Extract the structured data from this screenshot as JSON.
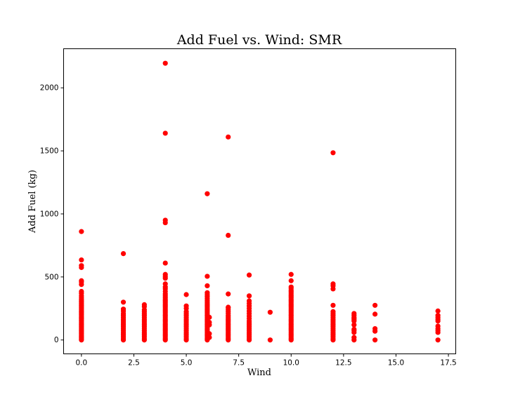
{
  "chart_data": {
    "type": "scatter",
    "title": "Add Fuel vs. Wind: SMR",
    "xlabel": "Wind",
    "ylabel": "Add Fuel (kg)",
    "xlim": [
      -0.85,
      17.85
    ],
    "ylim": [
      -110,
      2310
    ],
    "xticks": [
      0.0,
      2.5,
      5.0,
      7.5,
      10.0,
      12.5,
      15.0,
      17.5
    ],
    "xtick_labels": [
      "0.0",
      "2.5",
      "5.0",
      "7.5",
      "10.0",
      "12.5",
      "15.0",
      "17.5"
    ],
    "yticks": [
      0,
      500,
      1000,
      1500,
      2000
    ],
    "ytick_labels": [
      "0",
      "500",
      "1000",
      "1500",
      "2000"
    ],
    "grid": false,
    "legend": "none",
    "marker_color": "#ff0000",
    "series": [
      {
        "points": [
          [
            0,
            0
          ],
          [
            0,
            10
          ],
          [
            0,
            20
          ],
          [
            0,
            30
          ],
          [
            0,
            40
          ],
          [
            0,
            50
          ],
          [
            0,
            60
          ],
          [
            0,
            70
          ],
          [
            0,
            80
          ],
          [
            0,
            90
          ],
          [
            0,
            100
          ],
          [
            0,
            110
          ],
          [
            0,
            120
          ],
          [
            0,
            130
          ],
          [
            0,
            140
          ],
          [
            0,
            150
          ],
          [
            0,
            160
          ],
          [
            0,
            170
          ],
          [
            0,
            180
          ],
          [
            0,
            190
          ],
          [
            0,
            200
          ],
          [
            0,
            210
          ],
          [
            0,
            220
          ],
          [
            0,
            230
          ],
          [
            0,
            240
          ],
          [
            0,
            250
          ],
          [
            0,
            260
          ],
          [
            0,
            270
          ],
          [
            0,
            280
          ],
          [
            0,
            290
          ],
          [
            0,
            300
          ],
          [
            0,
            310
          ],
          [
            0,
            320
          ],
          [
            0,
            335
          ],
          [
            0,
            350
          ],
          [
            0,
            370
          ],
          [
            0,
            385
          ],
          [
            0,
            440
          ],
          [
            0,
            460
          ],
          [
            0,
            470
          ],
          [
            0,
            575
          ],
          [
            0,
            590
          ],
          [
            0,
            635
          ],
          [
            0,
            860
          ],
          [
            2,
            0
          ],
          [
            2,
            15
          ],
          [
            2,
            30
          ],
          [
            2,
            45
          ],
          [
            2,
            60
          ],
          [
            2,
            75
          ],
          [
            2,
            90
          ],
          [
            2,
            105
          ],
          [
            2,
            120
          ],
          [
            2,
            135
          ],
          [
            2,
            150
          ],
          [
            2,
            165
          ],
          [
            2,
            180
          ],
          [
            2,
            195
          ],
          [
            2,
            210
          ],
          [
            2,
            230
          ],
          [
            2,
            245
          ],
          [
            2,
            300
          ],
          [
            2,
            685
          ],
          [
            3,
            0
          ],
          [
            3,
            15
          ],
          [
            3,
            30
          ],
          [
            3,
            45
          ],
          [
            3,
            60
          ],
          [
            3,
            75
          ],
          [
            3,
            90
          ],
          [
            3,
            105
          ],
          [
            3,
            120
          ],
          [
            3,
            135
          ],
          [
            3,
            150
          ],
          [
            3,
            165
          ],
          [
            3,
            180
          ],
          [
            3,
            195
          ],
          [
            3,
            210
          ],
          [
            3,
            225
          ],
          [
            3,
            240
          ],
          [
            3,
            265
          ],
          [
            3,
            280
          ],
          [
            4,
            0
          ],
          [
            4,
            12
          ],
          [
            4,
            24
          ],
          [
            4,
            36
          ],
          [
            4,
            48
          ],
          [
            4,
            60
          ],
          [
            4,
            72
          ],
          [
            4,
            84
          ],
          [
            4,
            96
          ],
          [
            4,
            108
          ],
          [
            4,
            120
          ],
          [
            4,
            132
          ],
          [
            4,
            144
          ],
          [
            4,
            156
          ],
          [
            4,
            168
          ],
          [
            4,
            180
          ],
          [
            4,
            192
          ],
          [
            4,
            204
          ],
          [
            4,
            216
          ],
          [
            4,
            228
          ],
          [
            4,
            240
          ],
          [
            4,
            252
          ],
          [
            4,
            264
          ],
          [
            4,
            276
          ],
          [
            4,
            288
          ],
          [
            4,
            300
          ],
          [
            4,
            312
          ],
          [
            4,
            324
          ],
          [
            4,
            336
          ],
          [
            4,
            350
          ],
          [
            4,
            365
          ],
          [
            4,
            385
          ],
          [
            4,
            405
          ],
          [
            4,
            420
          ],
          [
            4,
            445
          ],
          [
            4,
            490
          ],
          [
            4,
            505
          ],
          [
            4,
            520
          ],
          [
            4,
            610
          ],
          [
            4,
            930
          ],
          [
            4,
            950
          ],
          [
            4,
            1640
          ],
          [
            4,
            2195
          ],
          [
            5,
            0
          ],
          [
            5,
            15
          ],
          [
            5,
            30
          ],
          [
            5,
            45
          ],
          [
            5,
            60
          ],
          [
            5,
            75
          ],
          [
            5,
            90
          ],
          [
            5,
            105
          ],
          [
            5,
            120
          ],
          [
            5,
            135
          ],
          [
            5,
            150
          ],
          [
            5,
            165
          ],
          [
            5,
            180
          ],
          [
            5,
            195
          ],
          [
            5,
            210
          ],
          [
            5,
            225
          ],
          [
            5,
            250
          ],
          [
            5,
            270
          ],
          [
            5,
            360
          ],
          [
            6,
            0
          ],
          [
            6,
            12
          ],
          [
            6,
            24
          ],
          [
            6,
            36
          ],
          [
            6,
            48
          ],
          [
            6,
            60
          ],
          [
            6,
            72
          ],
          [
            6,
            84
          ],
          [
            6,
            96
          ],
          [
            6,
            108
          ],
          [
            6,
            120
          ],
          [
            6,
            132
          ],
          [
            6,
            144
          ],
          [
            6,
            156
          ],
          [
            6,
            168
          ],
          [
            6,
            180
          ],
          [
            6,
            192
          ],
          [
            6,
            204
          ],
          [
            6,
            216
          ],
          [
            6,
            228
          ],
          [
            6,
            240
          ],
          [
            6,
            252
          ],
          [
            6,
            264
          ],
          [
            6,
            276
          ],
          [
            6,
            288
          ],
          [
            6,
            300
          ],
          [
            6,
            315
          ],
          [
            6,
            330
          ],
          [
            6,
            345
          ],
          [
            6,
            360
          ],
          [
            6,
            375
          ],
          [
            6,
            430
          ],
          [
            6,
            505
          ],
          [
            6,
            1160
          ],
          [
            6.1,
            20
          ],
          [
            6.1,
            50
          ],
          [
            6.1,
            120
          ],
          [
            6.1,
            140
          ],
          [
            6.1,
            180
          ],
          [
            7,
            0
          ],
          [
            7,
            12
          ],
          [
            7,
            24
          ],
          [
            7,
            36
          ],
          [
            7,
            48
          ],
          [
            7,
            60
          ],
          [
            7,
            72
          ],
          [
            7,
            84
          ],
          [
            7,
            96
          ],
          [
            7,
            108
          ],
          [
            7,
            120
          ],
          [
            7,
            132
          ],
          [
            7,
            144
          ],
          [
            7,
            156
          ],
          [
            7,
            168
          ],
          [
            7,
            180
          ],
          [
            7,
            192
          ],
          [
            7,
            210
          ],
          [
            7,
            225
          ],
          [
            7,
            240
          ],
          [
            7,
            255
          ],
          [
            7,
            260
          ],
          [
            7,
            365
          ],
          [
            7,
            830
          ],
          [
            7,
            1610
          ],
          [
            8,
            0
          ],
          [
            8,
            15
          ],
          [
            8,
            30
          ],
          [
            8,
            45
          ],
          [
            8,
            60
          ],
          [
            8,
            75
          ],
          [
            8,
            90
          ],
          [
            8,
            105
          ],
          [
            8,
            120
          ],
          [
            8,
            135
          ],
          [
            8,
            150
          ],
          [
            8,
            170
          ],
          [
            8,
            190
          ],
          [
            8,
            210
          ],
          [
            8,
            230
          ],
          [
            8,
            250
          ],
          [
            8,
            270
          ],
          [
            8,
            290
          ],
          [
            8,
            310
          ],
          [
            8,
            350
          ],
          [
            8,
            515
          ],
          [
            9,
            0
          ],
          [
            9,
            220
          ],
          [
            10,
            0
          ],
          [
            10,
            12
          ],
          [
            10,
            24
          ],
          [
            10,
            36
          ],
          [
            10,
            48
          ],
          [
            10,
            60
          ],
          [
            10,
            72
          ],
          [
            10,
            84
          ],
          [
            10,
            96
          ],
          [
            10,
            108
          ],
          [
            10,
            120
          ],
          [
            10,
            132
          ],
          [
            10,
            144
          ],
          [
            10,
            156
          ],
          [
            10,
            168
          ],
          [
            10,
            180
          ],
          [
            10,
            192
          ],
          [
            10,
            204
          ],
          [
            10,
            216
          ],
          [
            10,
            228
          ],
          [
            10,
            240
          ],
          [
            10,
            252
          ],
          [
            10,
            264
          ],
          [
            10,
            276
          ],
          [
            10,
            288
          ],
          [
            10,
            300
          ],
          [
            10,
            312
          ],
          [
            10,
            324
          ],
          [
            10,
            336
          ],
          [
            10,
            348
          ],
          [
            10,
            360
          ],
          [
            10,
            372
          ],
          [
            10,
            384
          ],
          [
            10,
            396
          ],
          [
            10,
            410
          ],
          [
            10,
            420
          ],
          [
            10,
            470
          ],
          [
            10,
            520
          ],
          [
            12,
            0
          ],
          [
            12,
            15
          ],
          [
            12,
            30
          ],
          [
            12,
            45
          ],
          [
            12,
            60
          ],
          [
            12,
            75
          ],
          [
            12,
            90
          ],
          [
            12,
            105
          ],
          [
            12,
            120
          ],
          [
            12,
            135
          ],
          [
            12,
            150
          ],
          [
            12,
            165
          ],
          [
            12,
            180
          ],
          [
            12,
            195
          ],
          [
            12,
            210
          ],
          [
            12,
            225
          ],
          [
            12,
            275
          ],
          [
            12,
            405
          ],
          [
            12,
            430
          ],
          [
            12,
            445
          ],
          [
            12,
            1485
          ],
          [
            13,
            0
          ],
          [
            13,
            20
          ],
          [
            13,
            60
          ],
          [
            13,
            75
          ],
          [
            13,
            85
          ],
          [
            13,
            120
          ],
          [
            13,
            150
          ],
          [
            13,
            160
          ],
          [
            13,
            170
          ],
          [
            13,
            180
          ],
          [
            13,
            195
          ],
          [
            13,
            210
          ],
          [
            14,
            0
          ],
          [
            14,
            70
          ],
          [
            14,
            90
          ],
          [
            14,
            205
          ],
          [
            14,
            275
          ],
          [
            17,
            0
          ],
          [
            17,
            60
          ],
          [
            17,
            75
          ],
          [
            17,
            90
          ],
          [
            17,
            110
          ],
          [
            17,
            150
          ],
          [
            17,
            165
          ],
          [
            17,
            180
          ],
          [
            17,
            195
          ],
          [
            17,
            230
          ]
        ]
      }
    ]
  }
}
